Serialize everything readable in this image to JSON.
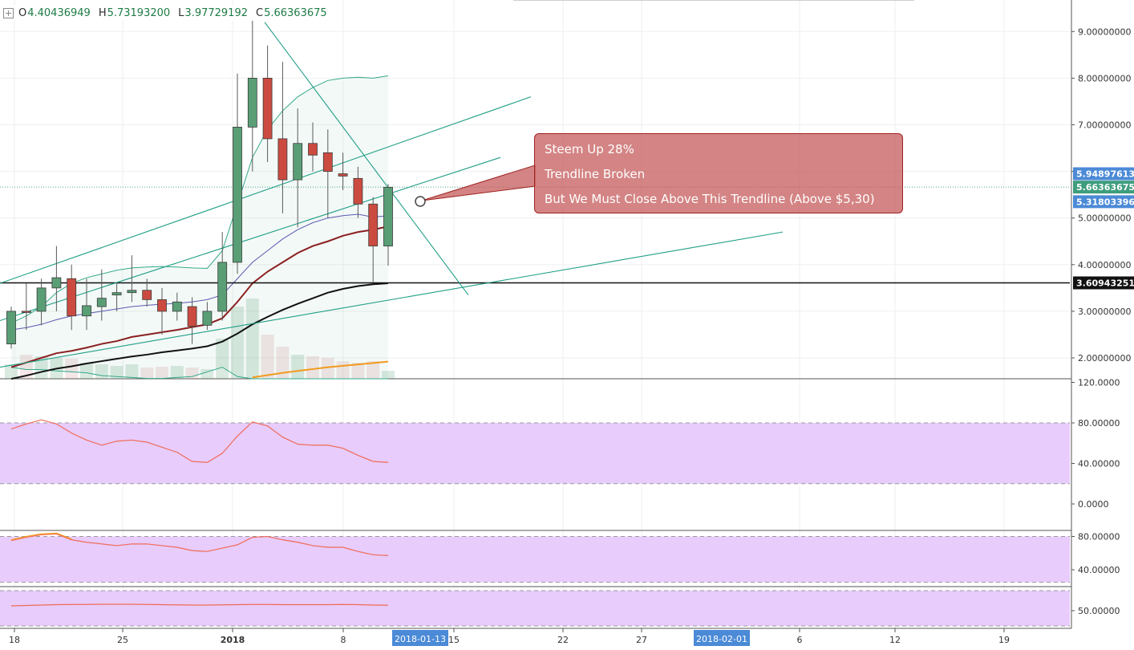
{
  "ohlc": {
    "o_label": "O",
    "o": "4.40436949",
    "h_label": "H",
    "h": "5.73193200",
    "l_label": "L",
    "l": "3.97729192",
    "c_label": "C",
    "c": "5.66363675"
  },
  "annotation": {
    "line1": "Steem Up 28%",
    "line2": "Trendline Broken",
    "line3": "But We Must Close Above This Trendline (Above $5,30)"
  },
  "price_badges": {
    "upper": "5.94897613",
    "current": "5.66363675",
    "lower": "5.31803396",
    "support": "3.60943251"
  },
  "x_labels": [
    "18",
    "25",
    "2018",
    "8",
    "15",
    "22",
    "27",
    "6",
    "12",
    "19"
  ],
  "date_badges": [
    "2018-01-13",
    "2018-02-01"
  ],
  "colors": {
    "up": "#5a9e76",
    "down": "#cc4b40",
    "callout": "#c45454",
    "panel_fill": "#e8ccfc",
    "axis_badge": "#4b8ad6"
  },
  "chart_data": [
    {
      "type": "candlestick",
      "title": "",
      "x_axis_ticks": [
        "18",
        "25",
        "2018",
        "8",
        "15",
        "22",
        "27",
        "6",
        "12",
        "19"
      ],
      "y_axis_ticks": [
        "2.00000000",
        "3.00000000",
        "4.00000000",
        "5.00000000",
        "6.00000000",
        "7.00000000",
        "8.00000000",
        "9.00000000"
      ],
      "y_range": [
        1.6,
        9.4
      ],
      "candles": [
        {
          "o": 2.3,
          "h": 3.1,
          "l": 2.2,
          "c": 3.0
        },
        {
          "o": 3.0,
          "h": 3.6,
          "l": 2.6,
          "c": 2.98
        },
        {
          "o": 3.0,
          "h": 3.7,
          "l": 2.7,
          "c": 3.5
        },
        {
          "o": 3.5,
          "h": 4.4,
          "l": 3.0,
          "c": 3.72
        },
        {
          "o": 3.7,
          "h": 4.0,
          "l": 2.6,
          "c": 2.9
        },
        {
          "o": 2.9,
          "h": 3.7,
          "l": 2.6,
          "c": 3.12
        },
        {
          "o": 3.1,
          "h": 3.9,
          "l": 2.8,
          "c": 3.28
        },
        {
          "o": 3.35,
          "h": 3.6,
          "l": 3.0,
          "c": 3.4
        },
        {
          "o": 3.4,
          "h": 4.2,
          "l": 3.2,
          "c": 3.45
        },
        {
          "o": 3.45,
          "h": 3.7,
          "l": 3.1,
          "c": 3.25
        },
        {
          "o": 3.25,
          "h": 3.5,
          "l": 2.5,
          "c": 3.0
        },
        {
          "o": 3.0,
          "h": 3.4,
          "l": 2.8,
          "c": 3.2
        },
        {
          "o": 3.1,
          "h": 3.3,
          "l": 2.3,
          "c": 2.68
        },
        {
          "o": 2.7,
          "h": 3.2,
          "l": 2.6,
          "c": 3.0
        },
        {
          "o": 3.0,
          "h": 4.7,
          "l": 2.8,
          "c": 4.05
        },
        {
          "o": 4.05,
          "h": 8.1,
          "l": 3.8,
          "c": 6.95
        },
        {
          "o": 6.95,
          "h": 9.25,
          "l": 6.0,
          "c": 8.0
        },
        {
          "o": 8.0,
          "h": 8.7,
          "l": 6.2,
          "c": 6.7
        },
        {
          "o": 6.7,
          "h": 8.35,
          "l": 5.1,
          "c": 5.82
        },
        {
          "o": 5.82,
          "h": 7.35,
          "l": 4.8,
          "c": 6.6
        },
        {
          "o": 6.6,
          "h": 7.05,
          "l": 6.0,
          "c": 6.35
        },
        {
          "o": 6.4,
          "h": 6.9,
          "l": 5.0,
          "c": 6.0
        },
        {
          "o": 5.95,
          "h": 6.4,
          "l": 5.6,
          "c": 5.9
        },
        {
          "o": 5.85,
          "h": 6.1,
          "l": 5.0,
          "c": 5.3
        },
        {
          "o": 5.3,
          "h": 5.45,
          "l": 3.62,
          "c": 4.4
        },
        {
          "o": 4.4,
          "h": 5.73,
          "l": 3.98,
          "c": 5.66
        }
      ],
      "support_level": 3.60943251
    },
    {
      "type": "line",
      "panel": "oscillator-1",
      "y_axis_ticks": [
        "120.0000",
        "80.00000",
        "40.00000",
        "0.0000"
      ],
      "y_range": [
        -20,
        125
      ],
      "band": [
        20,
        80
      ],
      "values": [
        74,
        79,
        83,
        79,
        70,
        63,
        58,
        62,
        63,
        61,
        56,
        51,
        42,
        41,
        50,
        67,
        81,
        77,
        66,
        59,
        58,
        58,
        55,
        48,
        42,
        41
      ]
    },
    {
      "type": "line",
      "panel": "oscillator-2",
      "y_axis_ticks": [
        "80.00000",
        "40.00000"
      ],
      "y_range": [
        22,
        95
      ],
      "band": [
        25,
        80
      ],
      "values": [
        75,
        79,
        82,
        83,
        76,
        73,
        71,
        69,
        71,
        71,
        69,
        67,
        63,
        62,
        66,
        70,
        79,
        80,
        76,
        73,
        69,
        67,
        67,
        62,
        58,
        57
      ]
    },
    {
      "type": "line",
      "panel": "oscillator-3",
      "y_axis_ticks": [
        "50.00000"
      ],
      "y_range": [
        42,
        70
      ],
      "values": [
        62,
        63,
        64,
        65,
        65.5,
        65.5,
        66,
        66,
        66,
        65.5,
        65,
        64.5,
        64,
        64,
        64.5,
        65,
        65.5,
        65.5,
        65,
        65,
        65,
        65,
        65.5,
        65,
        64,
        63.5
      ]
    }
  ]
}
